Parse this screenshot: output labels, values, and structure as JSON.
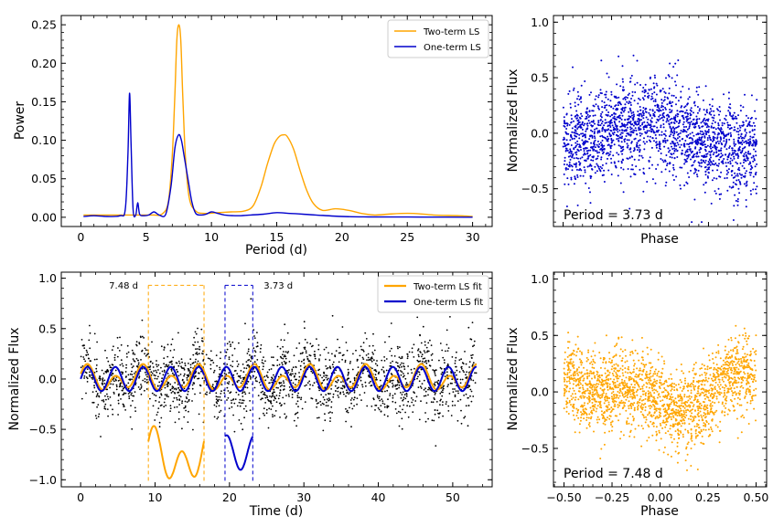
{
  "chart_data": [
    {
      "id": "periodogram",
      "type": "line",
      "title": "",
      "xlabel": "Period (d)",
      "ylabel": "Power",
      "xlim": [
        -1.5,
        31.5
      ],
      "ylim": [
        -0.012,
        0.262
      ],
      "xticks": [
        "0",
        "5",
        "10",
        "15",
        "20",
        "25",
        "30"
      ],
      "yticks": [
        "0.00",
        "0.05",
        "0.10",
        "0.15",
        "0.20",
        "0.25"
      ],
      "legend": {
        "position": "top-right",
        "entries": [
          "Two-term LS",
          "One-term LS"
        ]
      },
      "series": [
        {
          "name": "Two-term LS",
          "color": "#FFA500",
          "x": [
            0.2,
            2,
            3.5,
            4.5,
            5.5,
            6.2,
            6.7,
            7.0,
            7.2,
            7.35,
            7.5,
            7.65,
            7.8,
            8.0,
            8.3,
            8.8,
            9.5,
            10.5,
            11.5,
            12.5,
            13.2,
            13.8,
            14.3,
            14.8,
            15.2,
            15.5,
            15.8,
            16.3,
            16.8,
            17.3,
            17.8,
            18.5,
            19.5,
            20.5,
            21.5,
            22.5,
            23.5,
            24.5,
            25.5,
            27,
            29,
            30
          ],
          "y": [
            0.003,
            0.003,
            0.003,
            0.003,
            0.003,
            0.004,
            0.02,
            0.08,
            0.16,
            0.23,
            0.25,
            0.23,
            0.16,
            0.08,
            0.025,
            0.008,
            0.005,
            0.006,
            0.007,
            0.008,
            0.015,
            0.04,
            0.07,
            0.095,
            0.105,
            0.107,
            0.105,
            0.088,
            0.06,
            0.035,
            0.018,
            0.009,
            0.011,
            0.009,
            0.005,
            0.003,
            0.004,
            0.005,
            0.005,
            0.003,
            0.002,
            0.001
          ]
        },
        {
          "name": "One-term LS",
          "color": "#0000CC",
          "x": [
            0.2,
            1,
            2,
            3,
            3.4,
            3.6,
            3.73,
            3.85,
            4.0,
            4.2,
            4.35,
            4.5,
            4.8,
            5.2,
            5.6,
            6.0,
            6.5,
            6.9,
            7.2,
            7.48,
            7.7,
            7.9,
            8.2,
            8.5,
            8.8,
            9.2,
            9.6,
            10.0,
            10.5,
            11,
            12,
            13,
            14,
            15,
            16,
            17,
            18,
            20,
            22,
            25,
            28,
            30
          ],
          "y": [
            0.001,
            0.002,
            0.001,
            0.002,
            0.01,
            0.08,
            0.161,
            0.09,
            0.01,
            0.003,
            0.019,
            0.004,
            0.002,
            0.003,
            0.007,
            0.003,
            0.004,
            0.04,
            0.09,
            0.107,
            0.1,
            0.08,
            0.05,
            0.02,
            0.005,
            0.003,
            0.004,
            0.007,
            0.005,
            0.003,
            0.002,
            0.003,
            0.004,
            0.006,
            0.005,
            0.004,
            0.003,
            0.001,
            0.0005,
            0.0003,
            0.0002,
            0.0001
          ]
        }
      ]
    },
    {
      "id": "phase-one-term",
      "type": "scatter",
      "xlabel": "Phase",
      "ylabel": "Normalized Flux",
      "xlim": [
        -0.55,
        0.55
      ],
      "ylim": [
        -0.84,
        1.06
      ],
      "yticks": [
        "1.0",
        "0.5",
        "0.0",
        "−0.5"
      ],
      "xticks": [],
      "color": "#0000CC",
      "annotation": "Period = 3.73 d",
      "points": 2000
    },
    {
      "id": "lightcurve",
      "type": "scatter",
      "xlabel": "Time (d)",
      "ylabel": "Normalized Flux",
      "xlim": [
        -2.6,
        55.3
      ],
      "ylim": [
        -1.07,
        1.06
      ],
      "xticks": [
        "0",
        "10",
        "20",
        "30",
        "40",
        "50"
      ],
      "yticks": [
        "1.0",
        "0.5",
        "0.0",
        "−0.5",
        "−1.0"
      ],
      "legend": {
        "position": "top-right",
        "entries": [
          "Two-term LS fit",
          "One-term LS fit"
        ]
      },
      "fits": [
        {
          "name": "Two-term LS fit",
          "color": "#FFA500",
          "period": 7.48
        },
        {
          "name": "One-term LS fit",
          "color": "#0000CC",
          "period": 3.73
        }
      ],
      "insets": [
        {
          "label": "7.48 d",
          "color": "#FFA500",
          "t_start": 9.1,
          "t_end": 16.58
        },
        {
          "label": "3.73 d",
          "color": "#0000CC",
          "t_start": 19.4,
          "t_end": 23.13
        }
      ],
      "points": 2000
    },
    {
      "id": "phase-two-term",
      "type": "scatter",
      "xlabel": "Phase",
      "ylabel": "Normalized Flux",
      "xlim": [
        -0.555,
        0.555
      ],
      "ylim": [
        -0.84,
        1.06
      ],
      "xticks": [
        "−0.50",
        "−0.25",
        "0.00",
        "0.25",
        "0.50"
      ],
      "yticks": [
        "1.0",
        "0.5",
        "0.0",
        "−0.5"
      ],
      "color": "#FFA500",
      "annotation": "Period = 7.48 d",
      "points": 2000
    }
  ]
}
